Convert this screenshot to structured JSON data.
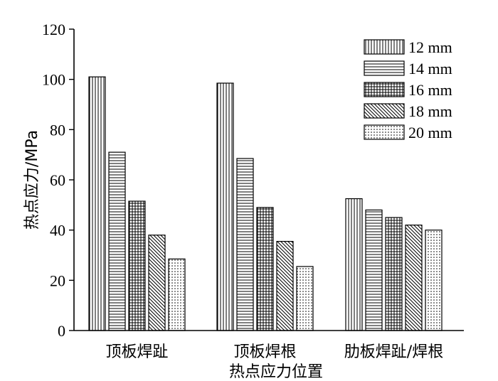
{
  "chart_data": {
    "type": "bar",
    "title": "",
    "xlabel": "热点应力位置",
    "ylabel": "热点应力/MPa",
    "ylim": [
      0,
      120
    ],
    "yticks": [
      0,
      20,
      40,
      60,
      80,
      100,
      120
    ],
    "categories": [
      "顶板焊趾",
      "顶板焊根",
      "肋板焊趾/焊根"
    ],
    "series": [
      {
        "name": "12 mm",
        "pattern": "vertical-lines",
        "values": [
          101,
          98.5,
          52.5
        ]
      },
      {
        "name": "14 mm",
        "pattern": "horizontal-lines",
        "values": [
          71,
          68.5,
          48
        ]
      },
      {
        "name": "16 mm",
        "pattern": "grid",
        "values": [
          51.5,
          49,
          45
        ]
      },
      {
        "name": "18 mm",
        "pattern": "diagonal-lines",
        "values": [
          38,
          35.5,
          42
        ]
      },
      {
        "name": "20 mm",
        "pattern": "dots",
        "values": [
          28.5,
          25.5,
          40
        ]
      }
    ],
    "legend_position": "top-right",
    "grid": false
  }
}
